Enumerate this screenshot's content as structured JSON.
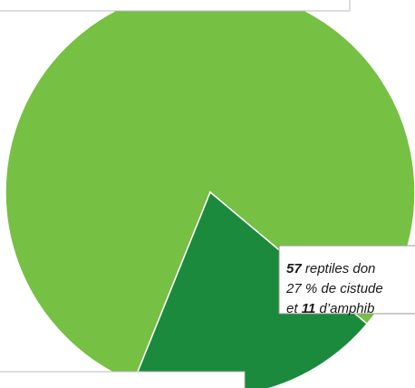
{
  "chart_data": {
    "type": "pie",
    "categories": [
      null,
      null
    ],
    "values": [
      80,
      20
    ],
    "colors": [
      "#76c043",
      "#1b8a3c"
    ],
    "annotation": [
      [
        {
          "text": "57",
          "bold": true
        },
        {
          "text": " reptiles don",
          "bold": false
        }
      ],
      [
        {
          "text": "27 % de cistude",
          "bold": false
        }
      ],
      [
        {
          "text": "et ",
          "bold": false
        },
        {
          "text": "11",
          "bold": true
        },
        {
          "text": " d’amphib",
          "bold": false
        }
      ]
    ]
  }
}
